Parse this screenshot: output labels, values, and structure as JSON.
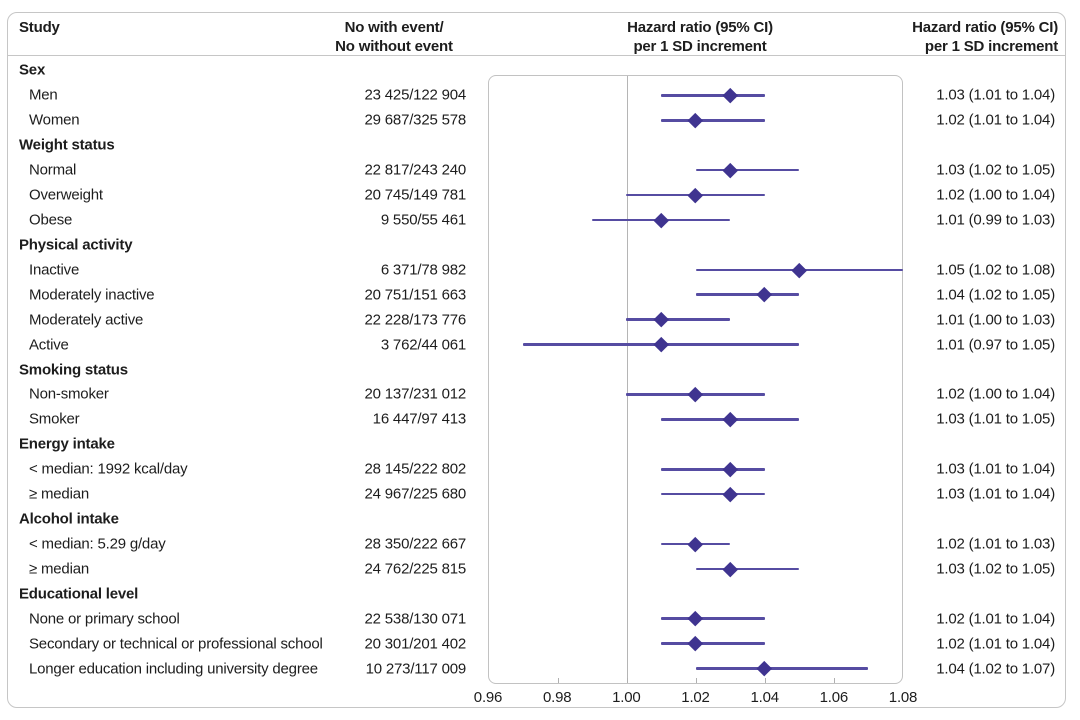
{
  "figure": {
    "columns": {
      "study": "Study",
      "events_line1": "No with event/",
      "events_line2": "No without event",
      "plot_line1": "Hazard ratio (95% CI)",
      "plot_line2": "per 1 SD increment",
      "hr_line1": "Hazard ratio (95% CI)",
      "hr_line2": "per 1 SD increment"
    },
    "colors": {
      "ci_line": "#564CA2",
      "diamond": "#3F3490",
      "refline": "#B5B5B5",
      "box_border": "#C2C2C2",
      "text": "#1D1D1D"
    }
  },
  "chart_data": {
    "type": "forest",
    "x_axis": {
      "ticks": [
        "0.96",
        "0.98",
        "1.00",
        "1.02",
        "1.04",
        "1.06",
        "1.08"
      ],
      "tick_values": [
        0.96,
        0.98,
        1.0,
        1.02,
        1.04,
        1.06,
        1.08
      ],
      "xlim": [
        0.96,
        1.08
      ],
      "reference_line": 1.0
    },
    "legend": "none",
    "marker": "diamond",
    "groups": [
      {
        "label": "Sex",
        "rows": [
          {
            "label": "Men",
            "events": "23 425/122 904",
            "hr": 1.03,
            "lo": 1.01,
            "hi": 1.04,
            "hr_text": "1.03 (1.01 to 1.04)"
          },
          {
            "label": "Women",
            "events": "29 687/325 578",
            "hr": 1.02,
            "lo": 1.01,
            "hi": 1.04,
            "hr_text": "1.02 (1.01 to 1.04)"
          }
        ]
      },
      {
        "label": "Weight status",
        "rows": [
          {
            "label": "Normal",
            "events": "22 817/243 240",
            "hr": 1.03,
            "lo": 1.02,
            "hi": 1.05,
            "hr_text": "1.03 (1.02 to 1.05)"
          },
          {
            "label": "Overweight",
            "events": "20 745/149 781",
            "hr": 1.02,
            "lo": 1.0,
            "hi": 1.04,
            "hr_text": "1.02 (1.00 to 1.04)"
          },
          {
            "label": "Obese",
            "events": "9 550/55 461",
            "hr": 1.01,
            "lo": 0.99,
            "hi": 1.03,
            "hr_text": "1.01 (0.99 to 1.03)"
          }
        ]
      },
      {
        "label": "Physical activity",
        "rows": [
          {
            "label": "Inactive",
            "events": "6 371/78 982",
            "hr": 1.05,
            "lo": 1.02,
            "hi": 1.08,
            "hr_text": "1.05 (1.02 to 1.08)"
          },
          {
            "label": "Moderately inactive",
            "events": "20 751/151 663",
            "hr": 1.04,
            "lo": 1.02,
            "hi": 1.05,
            "hr_text": "1.04 (1.02 to 1.05)"
          },
          {
            "label": "Moderately active",
            "events": "22 228/173 776",
            "hr": 1.01,
            "lo": 1.0,
            "hi": 1.03,
            "hr_text": "1.01 (1.00 to 1.03)"
          },
          {
            "label": "Active",
            "events": "3 762/44 061",
            "hr": 1.01,
            "lo": 0.97,
            "hi": 1.05,
            "hr_text": "1.01 (0.97 to 1.05)"
          }
        ]
      },
      {
        "label": "Smoking status",
        "rows": [
          {
            "label": "Non-smoker",
            "events": "20 137/231 012",
            "hr": 1.02,
            "lo": 1.0,
            "hi": 1.04,
            "hr_text": "1.02 (1.00 to 1.04)"
          },
          {
            "label": "Smoker",
            "events": "16 447/97 413",
            "hr": 1.03,
            "lo": 1.01,
            "hi": 1.05,
            "hr_text": "1.03 (1.01 to 1.05)"
          }
        ]
      },
      {
        "label": "Energy intake",
        "rows": [
          {
            "label": "< median: 1992 kcal/day",
            "events": "28 145/222 802",
            "hr": 1.03,
            "lo": 1.01,
            "hi": 1.04,
            "hr_text": "1.03 (1.01 to 1.04)"
          },
          {
            "label": "≥ median",
            "events": "24 967/225 680",
            "hr": 1.03,
            "lo": 1.01,
            "hi": 1.04,
            "hr_text": "1.03 (1.01 to 1.04)"
          }
        ]
      },
      {
        "label": "Alcohol intake",
        "rows": [
          {
            "label": "< median: 5.29 g/day",
            "events": "28 350/222 667",
            "hr": 1.02,
            "lo": 1.01,
            "hi": 1.03,
            "hr_text": "1.02 (1.01 to 1.03)"
          },
          {
            "label": "≥ median",
            "events": "24 762/225 815",
            "hr": 1.03,
            "lo": 1.02,
            "hi": 1.05,
            "hr_text": "1.03 (1.02 to 1.05)"
          }
        ]
      },
      {
        "label": "Educational level",
        "rows": [
          {
            "label": "None or primary school",
            "events": "22 538/130 071",
            "hr": 1.02,
            "lo": 1.01,
            "hi": 1.04,
            "hr_text": "1.02 (1.01 to 1.04)"
          },
          {
            "label": "Secondary or technical or professional school",
            "events": "20 301/201 402",
            "hr": 1.02,
            "lo": 1.01,
            "hi": 1.04,
            "hr_text": "1.02 (1.01 to 1.04)"
          },
          {
            "label": "Longer education including university degree",
            "events": "10 273/117 009",
            "hr": 1.04,
            "lo": 1.02,
            "hi": 1.07,
            "hr_text": "1.04 (1.02 to 1.07)"
          }
        ]
      }
    ]
  }
}
